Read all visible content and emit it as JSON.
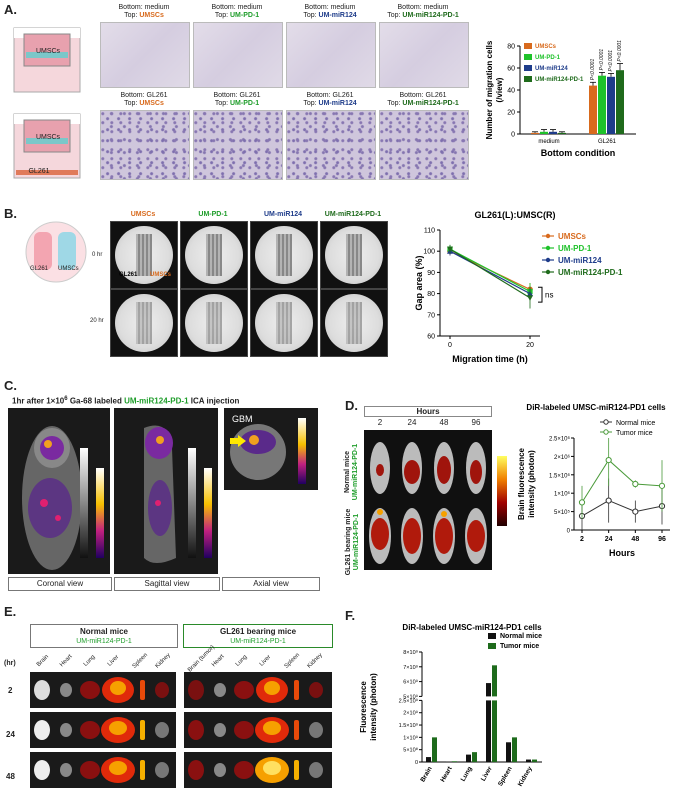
{
  "panels": {
    "A": {
      "label": "A.",
      "schematic_labels": [
        "UMSCs",
        "UMSCs",
        "GL261"
      ],
      "top_row": [
        {
          "bottom": "Bottom: medium",
          "top_prefix": "Top: ",
          "top": "UMSCs",
          "color": "#d86a1d"
        },
        {
          "bottom": "Bottom: medium",
          "top_prefix": "Top: ",
          "top": "UM-PD-1",
          "color": "#1e9d2a"
        },
        {
          "bottom": "Bottom: medium",
          "top_prefix": "Top: ",
          "top": "UM-miR124",
          "color": "#1e3c8a"
        },
        {
          "bottom": "Bottom: medium",
          "top_prefix": "Top: ",
          "top": "UM-miR124-PD-1",
          "color": "#1f6b1c"
        }
      ],
      "bottom_row": [
        {
          "bottom": "Bottom: GL261",
          "top_prefix": "Top: ",
          "top": "UMSCs",
          "color": "#d86a1d"
        },
        {
          "bottom": "Bottom: GL261",
          "top_prefix": "Top: ",
          "top": "UM-PD-1",
          "color": "#1e9d2a"
        },
        {
          "bottom": "Bottom: GL261",
          "top_prefix": "Top: ",
          "top": "UM-miR124",
          "color": "#1e3c8a"
        },
        {
          "bottom": "Bottom: GL261",
          "top_prefix": "Top: ",
          "top": "UM-miR124-PD-1",
          "color": "#1f6b1c"
        }
      ]
    },
    "B": {
      "label": "B.",
      "schematic_labels": [
        "GL261",
        "UMSCs"
      ],
      "columns": [
        {
          "name": "UMSCs",
          "color": "#d86a1d"
        },
        {
          "name": "UM-PD-1",
          "color": "#1e9d2a"
        },
        {
          "name": "UM-miR124",
          "color": "#1e3c8a"
        },
        {
          "name": "UM-miR124-PD-1",
          "color": "#1f6b1c"
        }
      ],
      "rows": [
        "0 hr",
        "20 hr"
      ],
      "img_labels": [
        "GL261",
        "UMSCs"
      ]
    },
    "C": {
      "label": "C.",
      "title_prefix": "1hr after 1×10",
      "title_sup": "6",
      "title_mid": " Ga-68 labeled ",
      "title_hl": "UM-miR124-PD-1",
      "title_suffix": " ICA injection",
      "gbm": "GBM",
      "views": [
        "Coronal view",
        "Sagittal view",
        "Axial view"
      ]
    },
    "D": {
      "label": "D.",
      "hours_header": "Hours",
      "hours": [
        "2",
        "24",
        "48",
        "96"
      ],
      "row_labels": [
        {
          "line1": "Normal mice",
          "line2": "UM-miR124-PD-1"
        },
        {
          "line1": "GL261 bearing mice",
          "line2": "UM-miR124-PD-1"
        }
      ]
    },
    "E": {
      "label": "E.",
      "groups": [
        {
          "line1": "Normal mice",
          "line2": "UM-miR124-PD-1"
        },
        {
          "line1": "GL261 bearing mice",
          "line2": "UM-miR124-PD-1"
        }
      ],
      "hr_label": "(hr)",
      "organs_normal": [
        "Brain",
        "Heart",
        "Lung",
        "Liver",
        "Spleen",
        "Kidney"
      ],
      "organs_tumor": [
        "Brain (tumor)",
        "Heart",
        "Lung",
        "Liver",
        "Spleen",
        "Kidney"
      ],
      "times": [
        "2",
        "24",
        "48"
      ]
    },
    "F": {
      "label": "F."
    }
  },
  "chart_data": [
    {
      "id": "A",
      "type": "bar",
      "xlabel": "Bottom condition",
      "ylabel": "Number of migration cells (/view)",
      "categories": [
        "medium",
        "GL261"
      ],
      "ylim": [
        0,
        80
      ],
      "yticks": [
        0,
        20,
        40,
        60,
        80
      ],
      "series": [
        {
          "name": "UMSCs",
          "values": [
            1,
            44
          ],
          "errors": [
            1,
            3
          ],
          "color": "#d86a1d"
        },
        {
          "name": "UM-PD-1",
          "values": [
            2,
            53
          ],
          "errors": [
            2,
            3
          ],
          "color": "#1ec22a"
        },
        {
          "name": "UM-miR124",
          "values": [
            2,
            52
          ],
          "errors": [
            2,
            3
          ],
          "color": "#1e3c8a"
        },
        {
          "name": "UM-miR124-PD-1",
          "values": [
            1,
            58
          ],
          "errors": [
            1,
            6
          ],
          "color": "#1f6b1c"
        }
      ],
      "annotations": [
        "P<0.0001",
        "P<0.0001",
        "P<0.0001",
        "P<0.0001"
      ]
    },
    {
      "id": "B",
      "type": "line",
      "title": "GL261(L):UMSC(R)",
      "xlabel": "Migration time (h)",
      "ylabel": "Gap area (%)",
      "x": [
        0,
        20
      ],
      "xticks": [
        0,
        20
      ],
      "ylim": [
        60,
        110
      ],
      "yticks": [
        60,
        70,
        80,
        90,
        100,
        110
      ],
      "series": [
        {
          "name": "UMSCs",
          "values": [
            100,
            82
          ],
          "errors": [
            2,
            3
          ],
          "color": "#d86a1d",
          "marker": "circle"
        },
        {
          "name": "UM-PD-1",
          "values": [
            101,
            81
          ],
          "errors": [
            2,
            4
          ],
          "color": "#1ec22a",
          "marker": "square"
        },
        {
          "name": "UM-miR124",
          "values": [
            100,
            80
          ],
          "errors": [
            2,
            3
          ],
          "color": "#1e3c8a",
          "marker": "triangle"
        },
        {
          "name": "UM-miR124-PD-1",
          "values": [
            101,
            78
          ],
          "errors": [
            2,
            5
          ],
          "color": "#1f6b1c",
          "marker": "tri-down"
        }
      ],
      "annotations": [
        "ns"
      ]
    },
    {
      "id": "D",
      "type": "line",
      "title": "DiR-labeled UMSC-miR124-PD1 cells",
      "xlabel": "Hours",
      "ylabel": "Brain fluorescence intensity (photon)",
      "categories": [
        "2",
        "24",
        "48",
        "96"
      ],
      "ylim": [
        0,
        2500000
      ],
      "yticks": [
        0,
        500000,
        1000000,
        1500000,
        2000000,
        2500000
      ],
      "ytick_labels": [
        "0",
        "5×10⁵",
        "1×10⁶",
        "1.5×10⁶",
        "2×10⁶",
        "2.5×10⁶"
      ],
      "series": [
        {
          "name": "Normal mice",
          "values": [
            380000,
            800000,
            500000,
            650000
          ],
          "errors": [
            400000,
            600000,
            300000,
            500000
          ],
          "color": "#333333"
        },
        {
          "name": "Tumor mice",
          "values": [
            750000,
            1900000,
            1250000,
            1200000
          ],
          "errors": [
            450000,
            700000,
            100000,
            700000
          ],
          "color": "#4a9a3a"
        }
      ]
    },
    {
      "id": "F",
      "type": "bar",
      "title": "DiR-labeled UMSC-miR124-PD1 cells",
      "ylabel": "Fluorescence intensity (photon)",
      "categories": [
        "Brain",
        "Heart",
        "Lung",
        "Liver",
        "Spleen",
        "Kidney"
      ],
      "ylim": [
        0,
        8000000000
      ],
      "ytick_labels": [
        "0",
        "5×10⁸",
        "1×10⁹",
        "1.5×10⁹",
        "2×10⁹",
        "2.5×10⁹",
        "5×10⁹",
        "6×10⁹",
        "7×10⁹",
        "8×10⁹"
      ],
      "series": [
        {
          "name": "Normal mice",
          "values": [
            200000000,
            20000000,
            300000000,
            5900000000,
            800000000,
            100000000
          ],
          "color": "#111111"
        },
        {
          "name": "Tumor mice",
          "values": [
            1000000000,
            30000000,
            400000000,
            7100000000,
            1000000000,
            100000000
          ],
          "color": "#1e6b1c"
        }
      ]
    }
  ]
}
